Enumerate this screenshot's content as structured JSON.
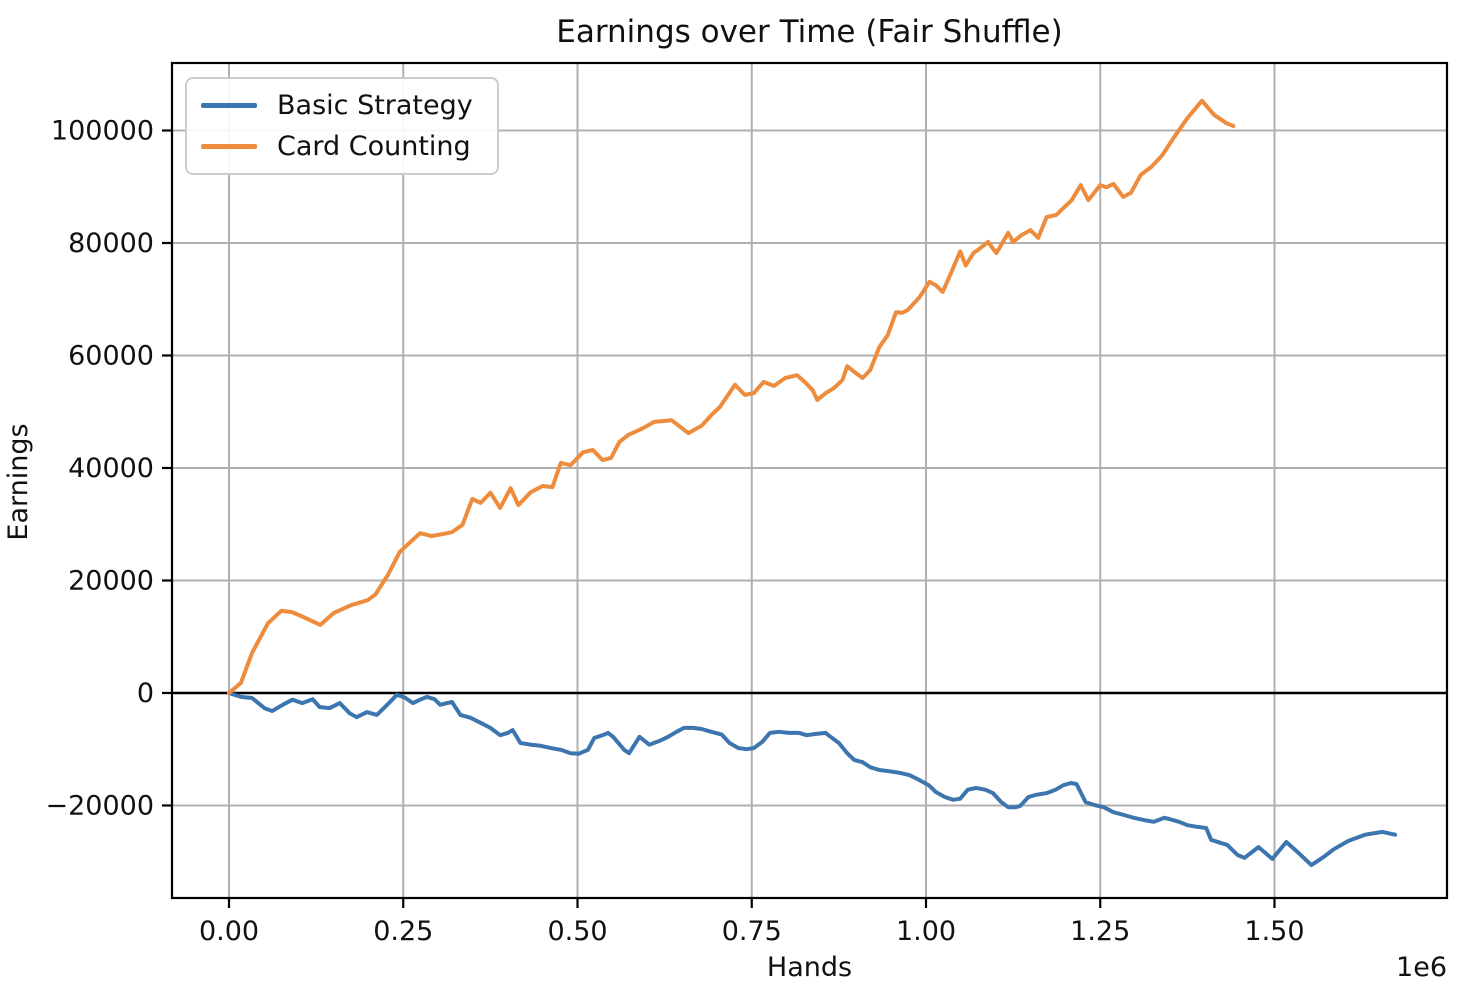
{
  "title": "Earnings over Time (Fair Shuffle)",
  "chart_data": {
    "type": "line",
    "title": "Earnings over Time (Fair Shuffle)",
    "xlabel": "Hands",
    "ylabel": "Earnings",
    "x_offset_label": "1e6",
    "xlim": [
      -81800,
      1747500
    ],
    "ylim": [
      -36450,
      112000
    ],
    "x_ticks": [
      0,
      250000,
      500000,
      750000,
      1000000,
      1250000,
      1500000
    ],
    "x_tick_labels": [
      "0.00",
      "0.25",
      "0.50",
      "0.75",
      "1.00",
      "1.25",
      "1.50"
    ],
    "y_ticks": [
      -20000,
      0,
      20000,
      40000,
      60000,
      80000,
      100000
    ],
    "y_tick_labels": [
      "−20000",
      "0",
      "20000",
      "40000",
      "60000",
      "80000",
      "100000"
    ],
    "grid": true,
    "zero_line": true,
    "legend_position": "upper left",
    "colors": {
      "grid": "#b0b0b0",
      "axis": "#000000",
      "zero_line": "#000000",
      "text": "#111111"
    },
    "series": [
      {
        "name": "Basic Strategy",
        "color": "#3d76ae",
        "points": [
          [
            0,
            0
          ],
          [
            17000,
            -700
          ],
          [
            33000,
            -900
          ],
          [
            51000,
            -2700
          ],
          [
            62000,
            -3200
          ],
          [
            77000,
            -2100
          ],
          [
            91000,
            -1200
          ],
          [
            105000,
            -1800
          ],
          [
            120000,
            -1100
          ],
          [
            130000,
            -2500
          ],
          [
            144000,
            -2700
          ],
          [
            159000,
            -1800
          ],
          [
            173000,
            -3600
          ],
          [
            183000,
            -4300
          ],
          [
            198000,
            -3400
          ],
          [
            212000,
            -3900
          ],
          [
            227000,
            -2100
          ],
          [
            241000,
            -300
          ],
          [
            252000,
            -800
          ],
          [
            264000,
            -1800
          ],
          [
            274000,
            -1200
          ],
          [
            284000,
            -700
          ],
          [
            295000,
            -1100
          ],
          [
            303000,
            -2100
          ],
          [
            313000,
            -1800
          ],
          [
            320000,
            -1600
          ],
          [
            332000,
            -3900
          ],
          [
            346000,
            -4400
          ],
          [
            361000,
            -5300
          ],
          [
            375000,
            -6200
          ],
          [
            389000,
            -7500
          ],
          [
            400000,
            -7100
          ],
          [
            407000,
            -6600
          ],
          [
            418000,
            -8900
          ],
          [
            433000,
            -9200
          ],
          [
            447000,
            -9400
          ],
          [
            462000,
            -9800
          ],
          [
            476000,
            -10100
          ],
          [
            490000,
            -10700
          ],
          [
            502000,
            -10800
          ],
          [
            515000,
            -10100
          ],
          [
            524000,
            -8000
          ],
          [
            536000,
            -7500
          ],
          [
            544000,
            -7100
          ],
          [
            551000,
            -7800
          ],
          [
            567000,
            -10100
          ],
          [
            574000,
            -10700
          ],
          [
            589000,
            -7800
          ],
          [
            603000,
            -9200
          ],
          [
            620000,
            -8400
          ],
          [
            630000,
            -7800
          ],
          [
            642000,
            -6900
          ],
          [
            653000,
            -6200
          ],
          [
            666000,
            -6200
          ],
          [
            678000,
            -6400
          ],
          [
            692000,
            -6900
          ],
          [
            707000,
            -7400
          ],
          [
            718000,
            -8900
          ],
          [
            731000,
            -9800
          ],
          [
            743000,
            -10000
          ],
          [
            753000,
            -9800
          ],
          [
            765000,
            -8700
          ],
          [
            776000,
            -7100
          ],
          [
            789000,
            -6900
          ],
          [
            803000,
            -7100
          ],
          [
            818000,
            -7100
          ],
          [
            829000,
            -7500
          ],
          [
            841000,
            -7300
          ],
          [
            856000,
            -7100
          ],
          [
            861000,
            -7600
          ],
          [
            875000,
            -8900
          ],
          [
            887000,
            -10700
          ],
          [
            897000,
            -11900
          ],
          [
            909000,
            -12300
          ],
          [
            920000,
            -13200
          ],
          [
            933000,
            -13700
          ],
          [
            947000,
            -13900
          ],
          [
            962000,
            -14200
          ],
          [
            976000,
            -14600
          ],
          [
            991000,
            -15500
          ],
          [
            1004000,
            -16400
          ],
          [
            1014000,
            -17600
          ],
          [
            1027000,
            -18500
          ],
          [
            1039000,
            -19000
          ],
          [
            1049000,
            -18800
          ],
          [
            1060000,
            -17200
          ],
          [
            1072000,
            -16900
          ],
          [
            1085000,
            -17200
          ],
          [
            1096000,
            -17800
          ],
          [
            1108000,
            -19400
          ],
          [
            1118000,
            -20300
          ],
          [
            1128000,
            -20300
          ],
          [
            1135000,
            -20100
          ],
          [
            1147000,
            -18500
          ],
          [
            1158000,
            -18100
          ],
          [
            1173000,
            -17800
          ],
          [
            1186000,
            -17200
          ],
          [
            1197000,
            -16400
          ],
          [
            1208000,
            -16000
          ],
          [
            1216000,
            -16200
          ],
          [
            1229000,
            -19400
          ],
          [
            1241000,
            -19900
          ],
          [
            1255000,
            -20300
          ],
          [
            1269000,
            -21200
          ],
          [
            1284000,
            -21700
          ],
          [
            1298000,
            -22200
          ],
          [
            1313000,
            -22600
          ],
          [
            1327000,
            -22900
          ],
          [
            1342000,
            -22200
          ],
          [
            1349000,
            -22400
          ],
          [
            1363000,
            -22900
          ],
          [
            1375000,
            -23500
          ],
          [
            1389000,
            -23800
          ],
          [
            1402000,
            -24000
          ],
          [
            1409000,
            -26100
          ],
          [
            1424000,
            -26700
          ],
          [
            1432000,
            -27000
          ],
          [
            1447000,
            -28800
          ],
          [
            1457000,
            -29300
          ],
          [
            1477000,
            -27400
          ],
          [
            1497000,
            -29500
          ],
          [
            1517000,
            -26500
          ],
          [
            1535000,
            -28500
          ],
          [
            1553000,
            -30600
          ],
          [
            1570000,
            -29200
          ],
          [
            1585000,
            -27800
          ],
          [
            1606000,
            -26300
          ],
          [
            1630000,
            -25200
          ],
          [
            1655000,
            -24700
          ],
          [
            1673000,
            -25200
          ]
        ]
      },
      {
        "name": "Card Counting",
        "color": "#ee8c3e",
        "points": [
          [
            0,
            0
          ],
          [
            17000,
            1800
          ],
          [
            33000,
            7100
          ],
          [
            56000,
            12400
          ],
          [
            75000,
            14600
          ],
          [
            90000,
            14400
          ],
          [
            105000,
            13600
          ],
          [
            131000,
            12100
          ],
          [
            150000,
            14200
          ],
          [
            175000,
            15600
          ],
          [
            199000,
            16500
          ],
          [
            210000,
            17500
          ],
          [
            228000,
            21000
          ],
          [
            245000,
            25100
          ],
          [
            274000,
            28400
          ],
          [
            291000,
            27900
          ],
          [
            313000,
            28400
          ],
          [
            320000,
            28600
          ],
          [
            335000,
            29900
          ],
          [
            349000,
            34500
          ],
          [
            361000,
            33800
          ],
          [
            375000,
            35600
          ],
          [
            389000,
            32900
          ],
          [
            404000,
            36400
          ],
          [
            415000,
            33400
          ],
          [
            433000,
            35700
          ],
          [
            450000,
            36800
          ],
          [
            464000,
            36600
          ],
          [
            476000,
            40900
          ],
          [
            490000,
            40500
          ],
          [
            508000,
            42800
          ],
          [
            522000,
            43200
          ],
          [
            536000,
            41400
          ],
          [
            548000,
            41800
          ],
          [
            560000,
            44600
          ],
          [
            573000,
            45900
          ],
          [
            591000,
            46900
          ],
          [
            610000,
            48200
          ],
          [
            635000,
            48500
          ],
          [
            659000,
            46200
          ],
          [
            678000,
            47500
          ],
          [
            692000,
            49400
          ],
          [
            704000,
            50800
          ],
          [
            726000,
            54800
          ],
          [
            740000,
            53000
          ],
          [
            753000,
            53300
          ],
          [
            767000,
            55300
          ],
          [
            782000,
            54600
          ],
          [
            798000,
            56000
          ],
          [
            815000,
            56500
          ],
          [
            826000,
            55300
          ],
          [
            837000,
            53900
          ],
          [
            844000,
            52100
          ],
          [
            856000,
            53300
          ],
          [
            868000,
            54200
          ],
          [
            880000,
            55600
          ],
          [
            887000,
            58100
          ],
          [
            899000,
            56900
          ],
          [
            909000,
            56000
          ],
          [
            920000,
            57400
          ],
          [
            933000,
            61500
          ],
          [
            945000,
            63600
          ],
          [
            957000,
            67700
          ],
          [
            966000,
            67600
          ],
          [
            974000,
            68100
          ],
          [
            991000,
            70400
          ],
          [
            1005000,
            73100
          ],
          [
            1014000,
            72500
          ],
          [
            1024000,
            71300
          ],
          [
            1036000,
            74700
          ],
          [
            1049000,
            78500
          ],
          [
            1057000,
            76000
          ],
          [
            1068000,
            78200
          ],
          [
            1075000,
            78800
          ],
          [
            1089000,
            80200
          ],
          [
            1101000,
            78200
          ],
          [
            1118000,
            81800
          ],
          [
            1125000,
            80200
          ],
          [
            1137000,
            81400
          ],
          [
            1150000,
            82300
          ],
          [
            1161000,
            80900
          ],
          [
            1173000,
            84600
          ],
          [
            1187000,
            85000
          ],
          [
            1197000,
            86200
          ],
          [
            1209000,
            87600
          ],
          [
            1222000,
            90300
          ],
          [
            1233000,
            87600
          ],
          [
            1250000,
            90300
          ],
          [
            1259000,
            89900
          ],
          [
            1269000,
            90500
          ],
          [
            1283000,
            88200
          ],
          [
            1294000,
            88900
          ],
          [
            1308000,
            92100
          ],
          [
            1323000,
            93500
          ],
          [
            1339000,
            95600
          ],
          [
            1356000,
            98800
          ],
          [
            1375000,
            102200
          ],
          [
            1396000,
            105300
          ],
          [
            1413000,
            102800
          ],
          [
            1431000,
            101300
          ],
          [
            1441000,
            100800
          ]
        ]
      }
    ]
  }
}
